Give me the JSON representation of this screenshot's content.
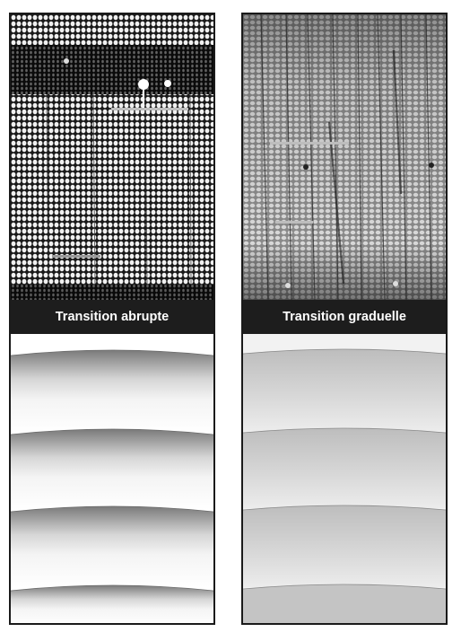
{
  "panels": {
    "abrupt": {
      "label": "Transition abrupte"
    },
    "gradual": {
      "label": "Transition graduelle"
    }
  },
  "colors": {
    "caption_bg": "#1d1d1d",
    "caption_text": "#ffffff",
    "border": "#1a1a1a"
  }
}
